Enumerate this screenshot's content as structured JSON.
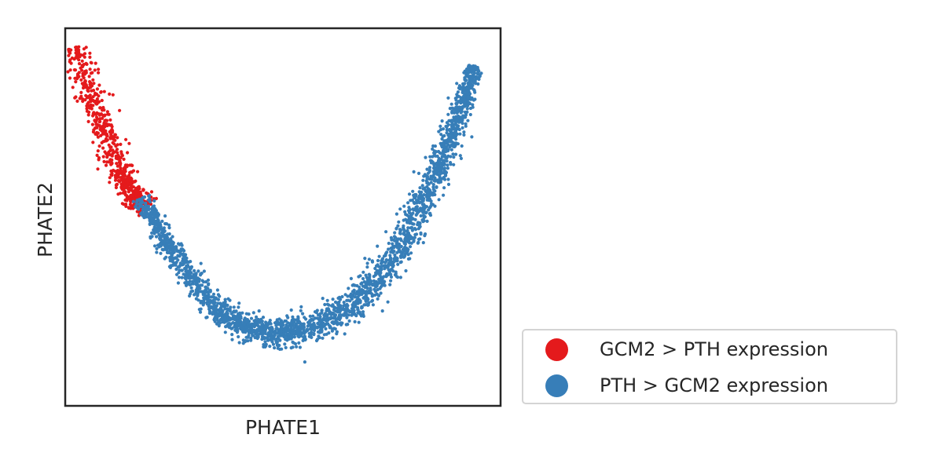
{
  "chart_data": {
    "type": "scatter",
    "title": "",
    "xlabel": "PHATE1",
    "ylabel": "PHATE2",
    "xticks": [],
    "yticks": [],
    "grid": false,
    "legend_position": "outside-right-bottom",
    "series": [
      {
        "name": "GCM2 > PTH expression",
        "color": "#e41a1c",
        "description_points": [
          [
            -0.95,
            0.9
          ],
          [
            -0.88,
            0.65
          ],
          [
            -0.82,
            0.45
          ],
          [
            -0.75,
            0.25
          ],
          [
            -0.7,
            0.12
          ],
          [
            -0.62,
            0.05
          ]
        ]
      },
      {
        "name": "PTH > GCM2 expression",
        "color": "#377eb8",
        "description_points": [
          [
            -0.65,
            0.1
          ],
          [
            -0.5,
            -0.2
          ],
          [
            -0.3,
            -0.5
          ],
          [
            -0.1,
            -0.62
          ],
          [
            0.1,
            -0.6
          ],
          [
            0.35,
            -0.45
          ],
          [
            0.55,
            -0.15
          ],
          [
            0.7,
            0.2
          ],
          [
            0.8,
            0.5
          ],
          [
            0.88,
            0.8
          ]
        ]
      }
    ]
  }
}
